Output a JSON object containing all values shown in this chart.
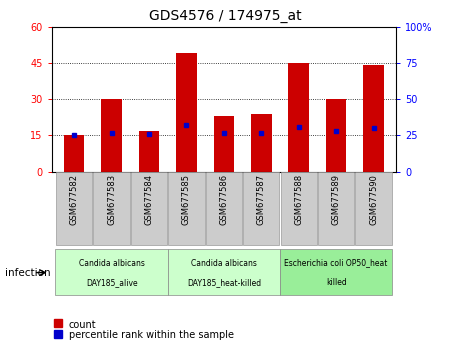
{
  "title": "GDS4576 / 174975_at",
  "samples": [
    "GSM677582",
    "GSM677583",
    "GSM677584",
    "GSM677585",
    "GSM677586",
    "GSM677587",
    "GSM677588",
    "GSM677589",
    "GSM677590"
  ],
  "counts": [
    15,
    30,
    17,
    49,
    23,
    24,
    45,
    30,
    44
  ],
  "percentile_ranks": [
    25,
    27,
    26,
    32,
    27,
    27,
    31,
    28,
    30
  ],
  "bar_color": "#cc0000",
  "percentile_color": "#0000cc",
  "ylim_left": [
    0,
    60
  ],
  "ylim_right": [
    0,
    100
  ],
  "yticks_left": [
    0,
    15,
    30,
    45,
    60
  ],
  "ytick_labels_left": [
    "0",
    "15",
    "30",
    "45",
    "60"
  ],
  "yticks_right": [
    0,
    25,
    50,
    75,
    100
  ],
  "ytick_labels_right": [
    "0",
    "25",
    "50",
    "75",
    "100%"
  ],
  "groups": [
    {
      "label": "Candida albicans\nDAY185_alive",
      "start": 0,
      "end": 3,
      "color": "#ccffcc"
    },
    {
      "label": "Candida albicans\nDAY185_heat-killed",
      "start": 3,
      "end": 6,
      "color": "#ccffcc"
    },
    {
      "label": "Escherichia coli OP50_heat\nkilled",
      "start": 6,
      "end": 9,
      "color": "#99ee99"
    }
  ],
  "infection_label": "infection",
  "legend_count_label": "count",
  "legend_percentile_label": "percentile rank within the sample",
  "background_color": "#ffffff",
  "bar_width": 0.55,
  "tickbox_color": "#cccccc",
  "tickbox_edge": "#999999"
}
